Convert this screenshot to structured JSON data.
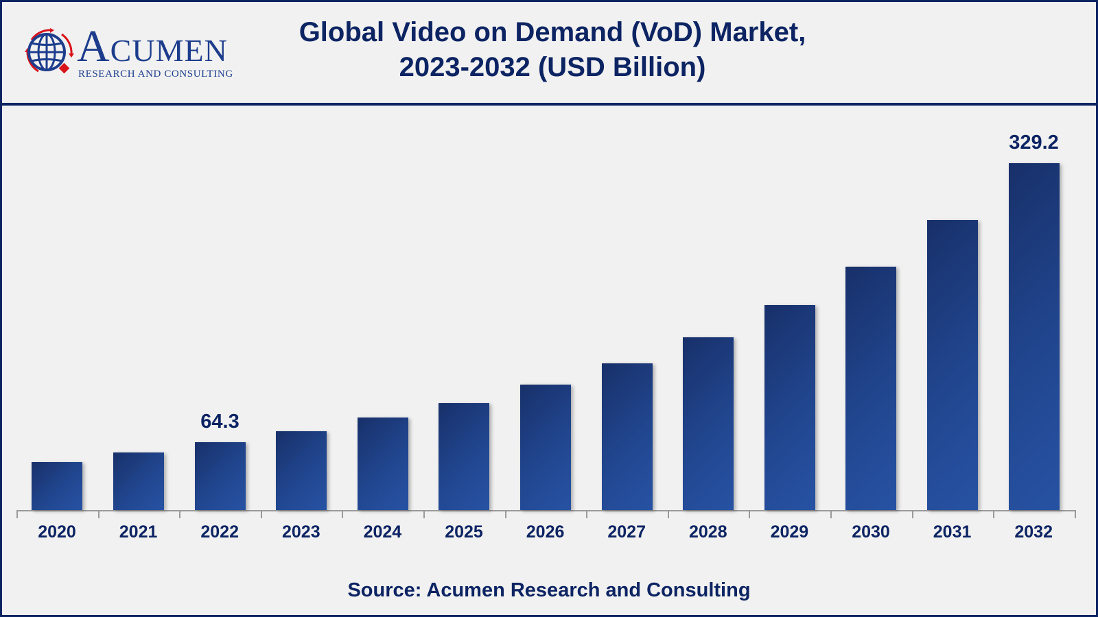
{
  "header": {
    "logo": {
      "name": "ACUMEN",
      "name_first": "A",
      "name_rest": "CUMEN",
      "tagline": "RESEARCH AND CONSULTING",
      "icon": "globe-icon"
    },
    "title_line1": "Global Video on Demand (VoD) Market,",
    "title_line2": "2023-2032 (USD Billion)"
  },
  "footer": {
    "source": "Source: Acumen Research and Consulting"
  },
  "colors": {
    "navy": "#0d2463",
    "bar_dark": "#18306a",
    "bar_light": "#2752a3",
    "background": "#f1f1f1",
    "logo_red": "#d8141b",
    "axis": "#9a9a9a"
  },
  "chart_data": {
    "type": "bar",
    "title": "Global Video on Demand (VoD) Market, 2023-2032 (USD Billion)",
    "xlabel": "",
    "ylabel": "USD Billion",
    "categories": [
      "2020",
      "2021",
      "2022",
      "2023",
      "2024",
      "2025",
      "2026",
      "2027",
      "2028",
      "2029",
      "2030",
      "2031",
      "2032"
    ],
    "values": [
      45.6,
      54.6,
      64.3,
      75.0,
      87.6,
      101.5,
      118.8,
      139.0,
      164.0,
      194.5,
      231.0,
      275.0,
      329.2
    ],
    "data_labels": [
      {
        "category": "2022",
        "text": "64.3"
      },
      {
        "category": "2032",
        "text": "329.2"
      }
    ],
    "ylim": [
      0,
      329.2
    ],
    "grid": false,
    "legend": null,
    "source": "Source: Acumen Research and Consulting"
  }
}
